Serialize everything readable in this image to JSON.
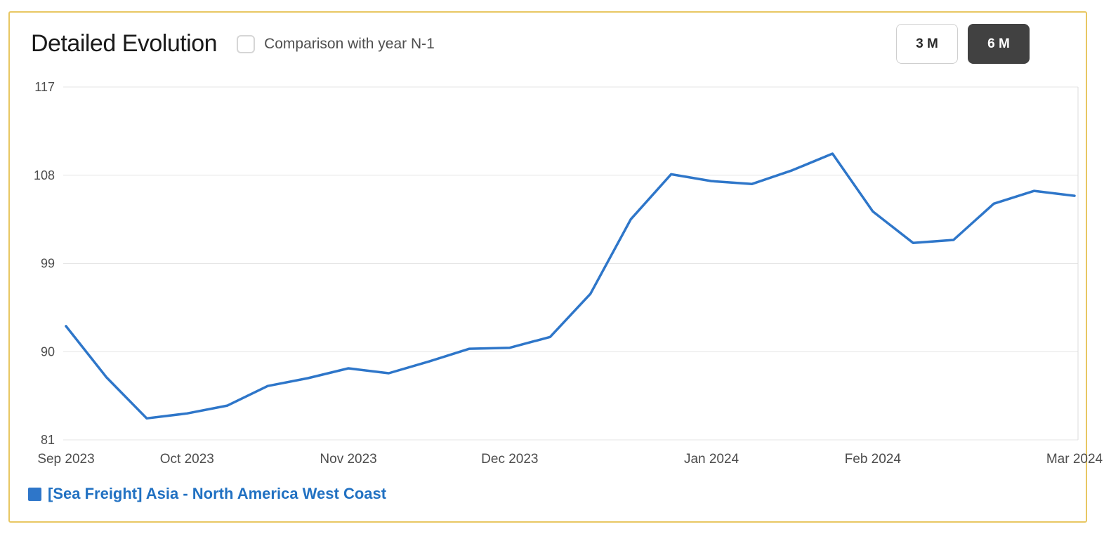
{
  "header": {
    "title": "Detailed Evolution",
    "checkbox_label": "Comparison with year N-1",
    "comparison_checked": false,
    "range_buttons": [
      {
        "label": "3 M",
        "active": false
      },
      {
        "label": "6 M",
        "active": true
      }
    ]
  },
  "chart_data": {
    "type": "line",
    "title": "Detailed Evolution",
    "grid": "horizontal",
    "ylim": [
      81,
      117
    ],
    "y_ticks": [
      81,
      90,
      99,
      108,
      117
    ],
    "x_ticks": [
      {
        "index": 0,
        "label": "Sep 2023"
      },
      {
        "index": 3,
        "label": "Oct 2023"
      },
      {
        "index": 7,
        "label": "Nov 2023"
      },
      {
        "index": 11,
        "label": "Dec 2023"
      },
      {
        "index": 16,
        "label": "Jan 2024"
      },
      {
        "index": 20,
        "label": "Feb 2024"
      },
      {
        "index": 25,
        "label": "Mar 2024"
      }
    ],
    "series": [
      {
        "name": "[Sea Freight] Asia - North America West Coast",
        "color": "#2e76c9",
        "values": [
          92.6,
          87.4,
          83.2,
          83.7,
          84.5,
          86.5,
          87.3,
          88.3,
          87.8,
          89.0,
          90.3,
          90.4,
          91.5,
          95.9,
          103.5,
          108.1,
          107.4,
          107.1,
          108.5,
          110.2,
          104.3,
          101.1,
          101.4,
          105.1,
          106.4,
          105.9
        ]
      }
    ],
    "legend_position": "bottom-left"
  },
  "legend": {
    "items": [
      {
        "label": "[Sea Freight] Asia - North America West Coast",
        "color": "#2e76c9"
      }
    ]
  },
  "colors": {
    "card_border": "#e8c763",
    "line": "#2e76c9",
    "legend_text": "#2171c2",
    "button_active_bg": "#414141"
  }
}
